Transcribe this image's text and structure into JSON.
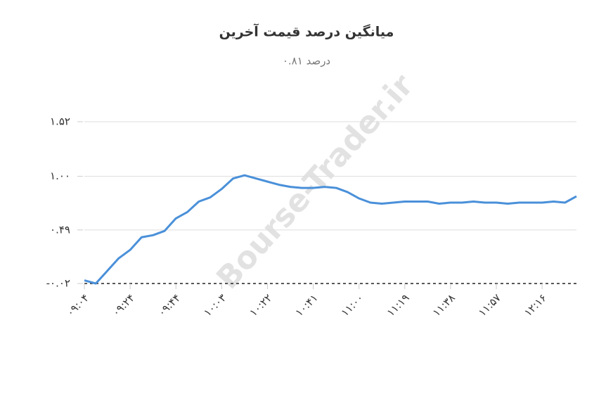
{
  "chart_data": {
    "type": "line",
    "title": "میانگین درصد قیمت آخرین",
    "subtitle": "درصد ۰.۸۱",
    "watermark": "Bourse-Trader.ir",
    "categories": [
      "۰۹:۰۴",
      null,
      null,
      null,
      "۰۹:۲۴",
      null,
      null,
      null,
      "۰۹:۴۴",
      null,
      null,
      null,
      "۱۰:۰۳",
      null,
      null,
      null,
      "۱۰:۲۲",
      null,
      null,
      null,
      "۱۰:۴۱",
      null,
      null,
      null,
      "۱۱:۰۰",
      null,
      null,
      null,
      "۱۱:۱۹",
      null,
      null,
      null,
      "۱۱:۳۸",
      null,
      null,
      null,
      "۱۱:۵۷",
      null,
      null,
      null,
      "۱۲:۱۶",
      null,
      null,
      null
    ],
    "series": [
      {
        "name": "میانگین درصد قیمت آخرین",
        "color": "#4a90d9",
        "values": [
          0.01,
          -0.02,
          0.1,
          0.22,
          0.3,
          0.42,
          0.44,
          0.48,
          0.6,
          0.66,
          0.76,
          0.8,
          0.88,
          0.98,
          1.01,
          0.98,
          0.95,
          0.92,
          0.9,
          0.89,
          0.89,
          0.9,
          0.89,
          0.85,
          0.79,
          0.75,
          0.74,
          0.75,
          0.76,
          0.76,
          0.76,
          0.74,
          0.75,
          0.75,
          0.76,
          0.75,
          0.75,
          0.74,
          0.75,
          0.75,
          0.75,
          0.76,
          0.75,
          0.81
        ]
      }
    ],
    "ylim": [
      -0.02,
      1.52
    ],
    "yticks": [
      {
        "value": -0.02,
        "label": "-۰.۰۲"
      },
      {
        "value": 0.49,
        "label": "۰.۴۹"
      },
      {
        "value": 1.0,
        "label": "۱.۰۰"
      },
      {
        "value": 1.52,
        "label": "۱.۵۲"
      }
    ],
    "grid": true
  }
}
